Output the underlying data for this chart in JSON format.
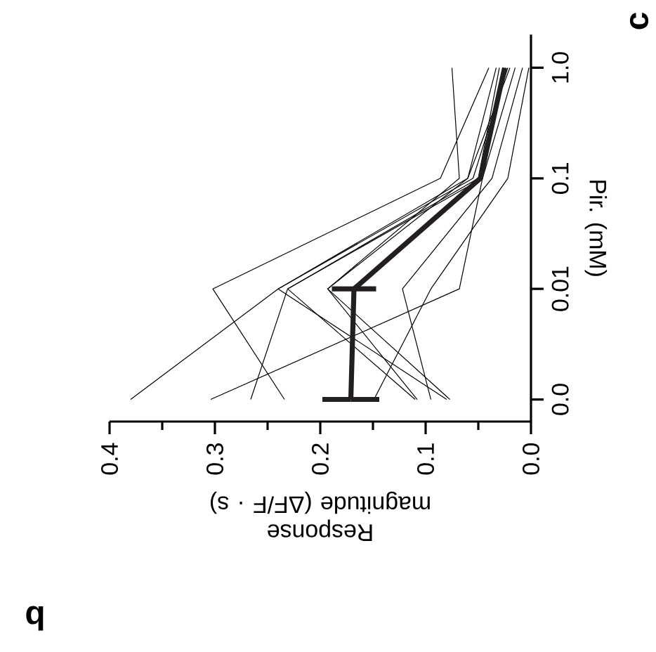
{
  "chart_data": {
    "type": "line",
    "orientation": "horizontal",
    "xlabel": "Response magnitude (ΔF/F · s)",
    "ylabel": "Pir. (mM)",
    "categories": [
      "1.0",
      "0.1",
      "0.01",
      "0.0"
    ],
    "xlim": [
      0.4,
      0
    ],
    "xticks": [
      {
        "value": 0.4,
        "label": "0.4"
      },
      {
        "value": 0.35,
        "label": null
      },
      {
        "value": 0.3,
        "label": "0.3"
      },
      {
        "value": 0.25,
        "label": null
      },
      {
        "value": 0.2,
        "label": "0.2"
      },
      {
        "value": 0.15,
        "label": null
      },
      {
        "value": 0.1,
        "label": "0.1"
      },
      {
        "value": 0.05,
        "label": null
      },
      {
        "value": 0,
        "label": "0.0"
      }
    ],
    "annotations": [
      "b",
      "c"
    ],
    "series": [
      {
        "color": "#000000",
        "values": [
          0.02,
          0.06,
          0.24,
          0.38
        ]
      },
      {
        "color": "#000000",
        "values": [
          0.015,
          0.046,
          0.068,
          0.304
        ]
      },
      {
        "color": "#000000",
        "values": [
          0.024,
          0.046,
          0.231,
          0.266
        ]
      },
      {
        "color": "#000000",
        "values": [
          0.04,
          0.086,
          0.302,
          0.234
        ]
      },
      {
        "color": "#000000",
        "values": [
          0.002,
          0.022,
          0.095,
          0.149
        ]
      },
      {
        "color": "#000000",
        "values": [
          0.033,
          0.06,
          0.193,
          0.108
        ]
      },
      {
        "color": "#000000",
        "values": [
          0.008,
          0.037,
          0.122,
          0.095
        ]
      },
      {
        "color": "#000000",
        "values": [
          0.075,
          0.068,
          0.193,
          0.077
        ]
      },
      {
        "color": "#000000",
        "values": [
          0.03,
          0.05,
          0.231,
          0.11
        ]
      },
      {
        "color": "#000000",
        "values": [
          0.022,
          0.055,
          0.24,
          0.08
        ]
      },
      {
        "color": "#231f20",
        "values": [
          0.025,
          0.048,
          0.168,
          0.171
        ],
        "errors": [
          null,
          null,
          0.021,
          0.027
        ]
      }
    ]
  }
}
